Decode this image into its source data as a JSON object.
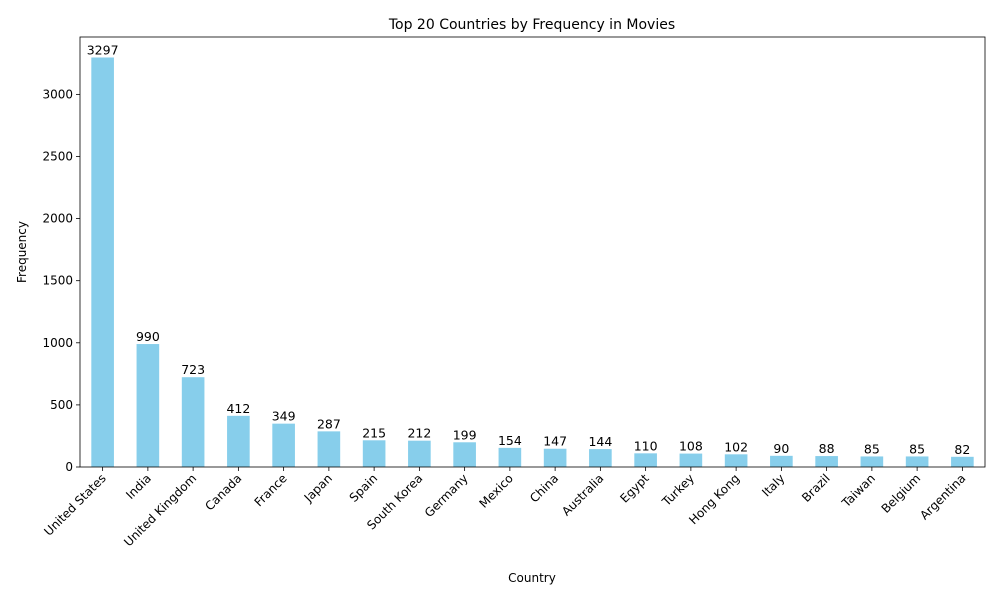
{
  "chart_data": {
    "type": "bar",
    "title": "Top 20 Countries by Frequency in Movies",
    "xlabel": "Country",
    "ylabel": "Frequency",
    "categories": [
      "United States",
      "India",
      "United Kingdom",
      "Canada",
      "France",
      "Japan",
      "Spain",
      "South Korea",
      "Germany",
      "Mexico",
      "China",
      "Australia",
      "Egypt",
      "Turkey",
      "Hong Kong",
      "Italy",
      "Brazil",
      "Taiwan",
      "Belgium",
      "Argentina"
    ],
    "values": [
      3297,
      990,
      723,
      412,
      349,
      287,
      215,
      212,
      199,
      154,
      147,
      144,
      110,
      108,
      102,
      90,
      88,
      85,
      85,
      82
    ],
    "ylim": [
      0,
      3462
    ],
    "yticks": [
      0,
      500,
      1000,
      1500,
      2000,
      2500,
      3000
    ],
    "bar_color": "#87ceeb",
    "grid": false,
    "legend": "none"
  }
}
